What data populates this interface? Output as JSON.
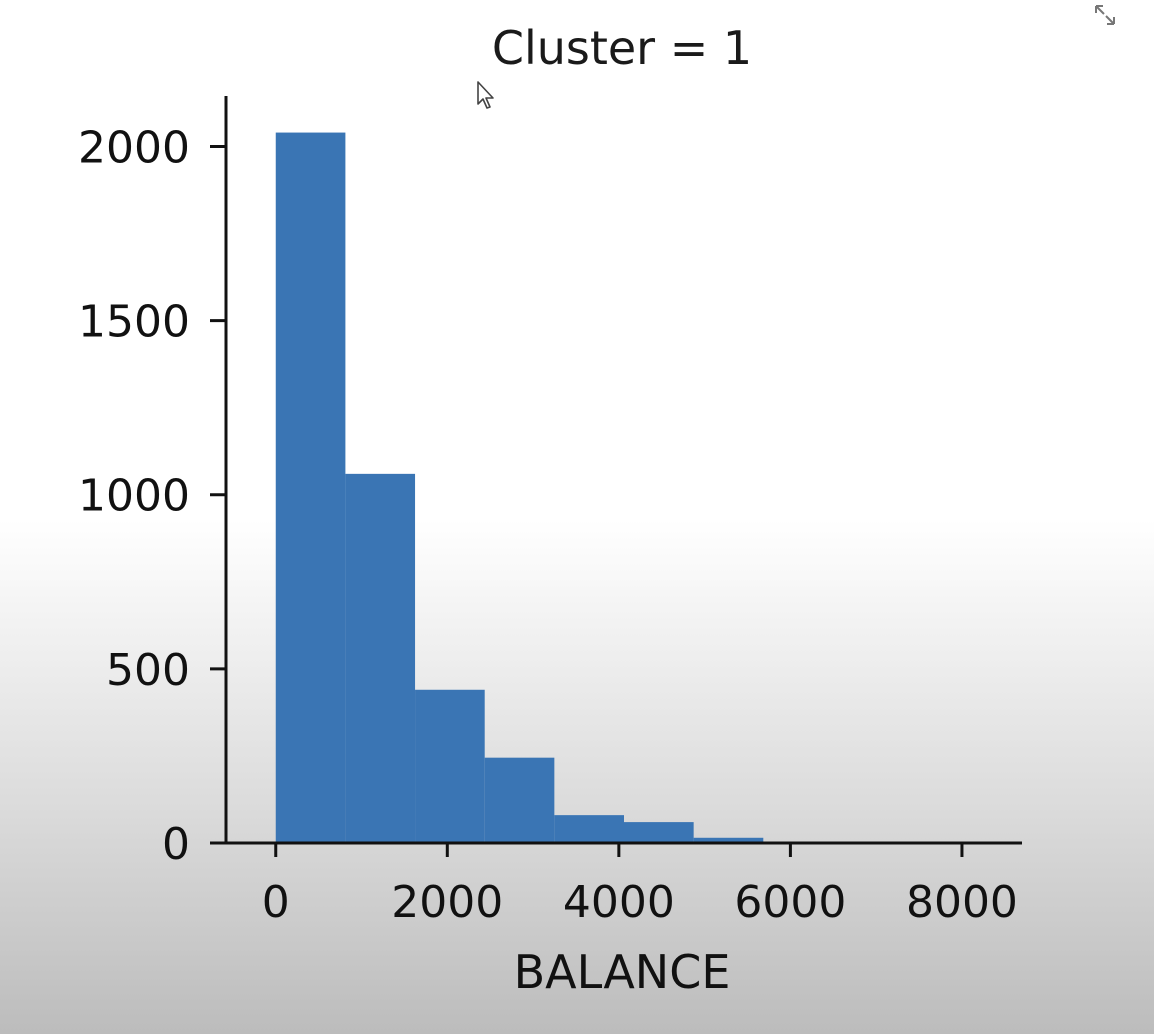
{
  "chart_data": {
    "type": "bar",
    "title": "Cluster = 1",
    "xlabel": "BALANCE",
    "ylabel": "",
    "bin_edges": [
      0,
      812,
      1624,
      2436,
      3248,
      4060,
      4872,
      5684,
      6496,
      7308,
      8120
    ],
    "values": [
      2040,
      1060,
      440,
      245,
      80,
      60,
      15,
      3,
      2,
      1
    ],
    "xlim": [
      -580,
      8700
    ],
    "ylim": [
      0,
      2145
    ],
    "xticks": [
      0,
      2000,
      4000,
      6000,
      8000
    ],
    "xtick_labels": [
      "0",
      "2000",
      "4000",
      "6000",
      "8000"
    ],
    "yticks": [
      0,
      500,
      1000,
      1500,
      2000
    ],
    "ytick_labels": [
      "0",
      "500",
      "1000",
      "1500",
      "2000"
    ],
    "bar_color": "#3a75b4",
    "grid": false
  },
  "icons": {
    "expand": "expand-arrows-icon",
    "cursor": "mouse-pointer-icon"
  }
}
